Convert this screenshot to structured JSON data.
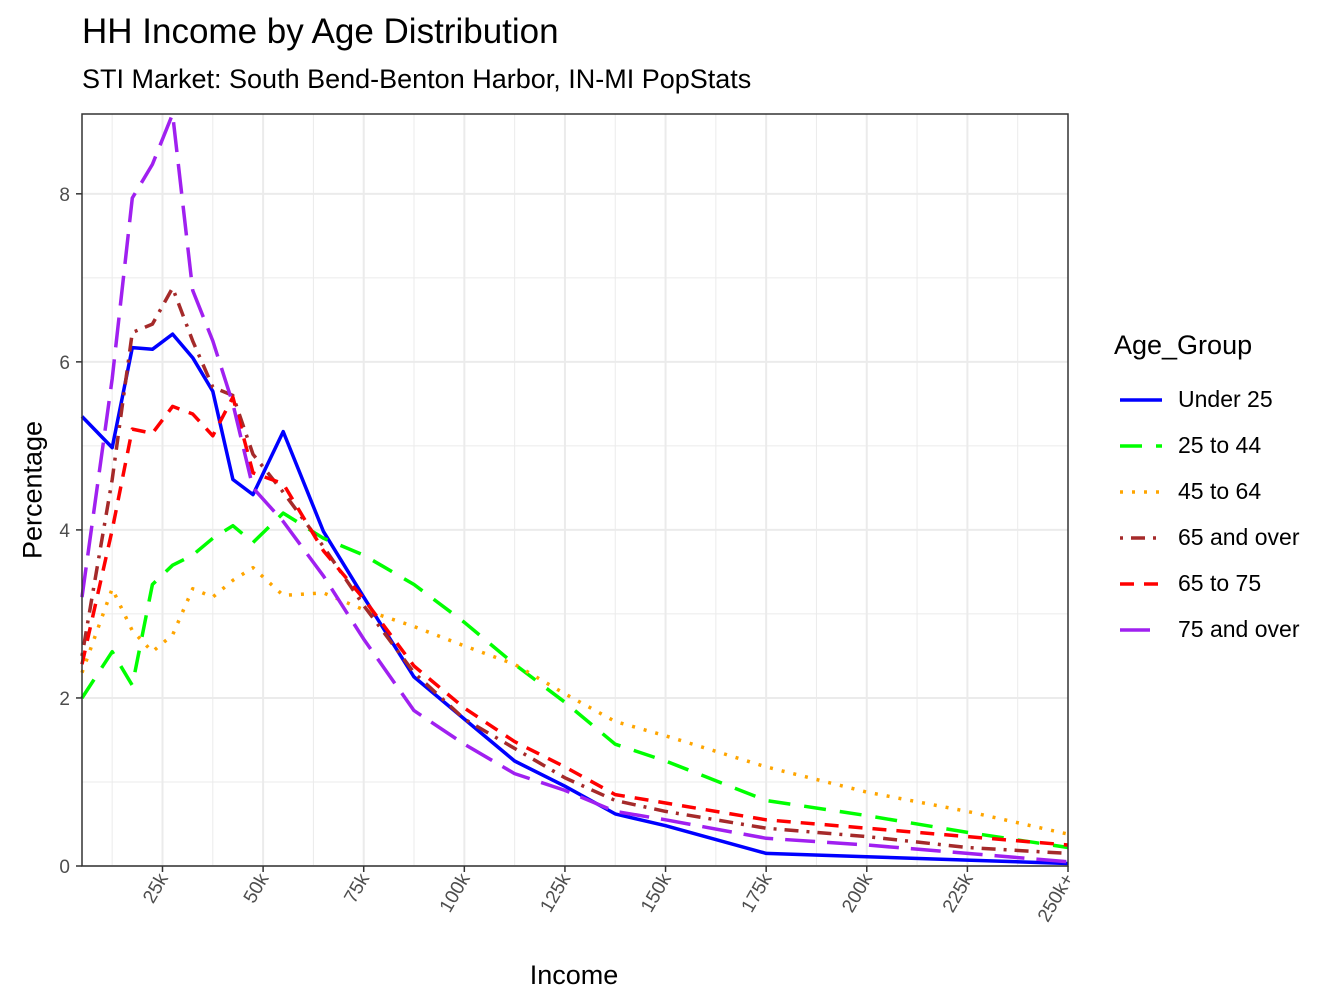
{
  "chart_data": {
    "type": "line",
    "title": "HH Income by Age Distribution",
    "subtitle": "STI Market: South Bend-Benton Harbor, IN-MI PopStats",
    "xlabel": "Income",
    "ylabel": "Percentage",
    "legend_title": "Age_Group",
    "legend_position": "right",
    "grid": true,
    "xlim": [
      5,
      250
    ],
    "ylim": [
      0,
      8.95
    ],
    "x_ticks": [
      25,
      50,
      75,
      100,
      125,
      150,
      175,
      200,
      225,
      250
    ],
    "x_tick_labels": [
      "25k",
      "50k",
      "75k",
      "100k",
      "125k",
      "150k",
      "175k",
      "200k",
      "225k",
      "250k+"
    ],
    "y_ticks": [
      0,
      2,
      4,
      6,
      8
    ],
    "y_tick_labels": [
      "0",
      "2",
      "4",
      "6",
      "8"
    ],
    "x": [
      5,
      12.5,
      17.5,
      22.5,
      27.5,
      32.5,
      37.5,
      42.5,
      47.5,
      55,
      65,
      75,
      87.5,
      100,
      112.5,
      125,
      137.5,
      150,
      175,
      200,
      225,
      250
    ],
    "series": [
      {
        "name": "Under 25",
        "color": "#0000ff",
        "dash": "solid",
        "values": [
          5.35,
          4.98,
          6.17,
          6.15,
          6.33,
          6.05,
          5.65,
          4.6,
          4.42,
          5.17,
          3.98,
          3.2,
          2.25,
          1.75,
          1.25,
          0.95,
          0.62,
          0.48,
          0.15,
          0.11,
          0.07,
          0.03
        ]
      },
      {
        "name": "25 to 44",
        "color": "#00ff00",
        "dash": "long",
        "values": [
          2.0,
          2.55,
          2.15,
          3.35,
          3.58,
          3.7,
          3.9,
          4.05,
          3.85,
          4.2,
          3.9,
          3.7,
          3.35,
          2.9,
          2.4,
          1.95,
          1.45,
          1.25,
          0.78,
          0.6,
          0.4,
          0.22
        ]
      },
      {
        "name": "45 to 64",
        "color": "#ffa500",
        "dash": "dotted",
        "values": [
          2.3,
          3.3,
          2.8,
          2.55,
          2.75,
          3.3,
          3.2,
          3.4,
          3.55,
          3.22,
          3.25,
          3.05,
          2.85,
          2.62,
          2.4,
          2.05,
          1.72,
          1.55,
          1.18,
          0.88,
          0.65,
          0.38
        ]
      },
      {
        "name": "65 and over",
        "color": "#a52a2a",
        "dash": "dotdash",
        "values": [
          2.5,
          4.6,
          6.35,
          6.45,
          6.88,
          6.25,
          5.7,
          5.6,
          4.9,
          4.45,
          3.8,
          3.1,
          2.3,
          1.75,
          1.4,
          1.05,
          0.78,
          0.65,
          0.45,
          0.35,
          0.22,
          0.15
        ]
      },
      {
        "name": "65 to 75",
        "color": "#ff0000",
        "dash": "dashed",
        "values": [
          2.4,
          4.0,
          5.2,
          5.15,
          5.47,
          5.38,
          5.12,
          5.58,
          4.68,
          4.55,
          3.75,
          3.18,
          2.38,
          1.88,
          1.48,
          1.18,
          0.85,
          0.75,
          0.55,
          0.45,
          0.35,
          0.25
        ]
      },
      {
        "name": "75 and over",
        "color": "#a020f0",
        "dash": "longdash",
        "values": [
          3.2,
          5.8,
          7.95,
          8.35,
          8.95,
          6.85,
          6.25,
          5.5,
          4.5,
          4.1,
          3.45,
          2.7,
          1.85,
          1.45,
          1.1,
          0.9,
          0.65,
          0.55,
          0.33,
          0.25,
          0.15,
          0.05
        ]
      }
    ]
  }
}
